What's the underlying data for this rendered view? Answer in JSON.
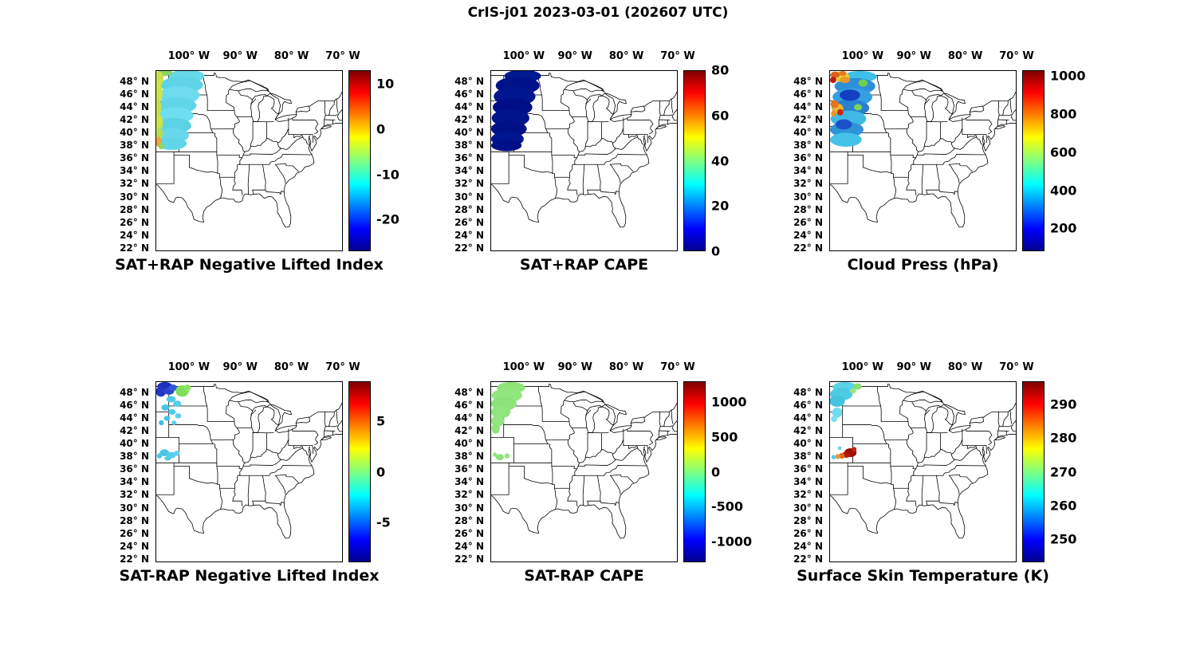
{
  "chart_data": {
    "type": "map",
    "title": "CrIS-j01 2023-03-01 (202607 UTC)",
    "projection": "lon/lat grid over central & eastern United States with state boundaries",
    "lon_range": [
      -106.5,
      -70.0
    ],
    "lat_range": [
      21.5,
      49.7
    ],
    "grid": "off",
    "colormap": "jet",
    "x_ticks": [
      "100° W",
      "90° W",
      "80° W",
      "70° W"
    ],
    "x_tick_lons": [
      -100,
      -90,
      -80,
      -70
    ],
    "y_ticks": [
      "48° N",
      "46° N",
      "44° N",
      "42° N",
      "40° N",
      "38° N",
      "36° N",
      "34° N",
      "32° N",
      "30° N",
      "28° N",
      "26° N",
      "24° N",
      "22° N"
    ],
    "y_tick_lats": [
      48,
      46,
      44,
      42,
      40,
      38,
      36,
      34,
      32,
      30,
      28,
      26,
      24,
      22
    ],
    "panels": [
      {
        "title": "SAT+RAP Negative Lifted Index",
        "colorbar": {
          "min": -27,
          "max": 13,
          "ticks": [
            10,
            0,
            -10,
            -20
          ]
        },
        "description": "CrIS swath over the northern Great Plains; mostly cyan (≈ -8 to -12) with yellow-green values (≈ 0 to 3) along the western edge and one orange patch (≈ 7) near 38.5N.",
        "swath": [
          [
            -100.5,
            48.9,
            3.5,
            1.0,
            "#67d8ea"
          ],
          [
            -101.5,
            47.5,
            4.2,
            1.3,
            "#5fd3e7"
          ],
          [
            -102.0,
            45.9,
            4.0,
            1.4,
            "#6cdbee"
          ],
          [
            -102.4,
            44.3,
            3.8,
            1.3,
            "#62d6e9"
          ],
          [
            -102.8,
            42.7,
            3.6,
            1.3,
            "#6edff0"
          ],
          [
            -103.0,
            41.1,
            3.4,
            1.2,
            "#5cd2e6"
          ],
          [
            -103.3,
            39.6,
            3.2,
            1.2,
            "#66d8ea"
          ],
          [
            -103.5,
            38.3,
            3.0,
            1.0,
            "#60d5e8"
          ],
          [
            -104.9,
            49.4,
            1.6,
            0.5,
            "#8ad465"
          ],
          [
            -106.0,
            48.5,
            0.9,
            1.2,
            "#c9e24c"
          ],
          [
            -106.1,
            46.3,
            0.8,
            1.5,
            "#cfe448"
          ],
          [
            -106.2,
            44.0,
            0.7,
            1.4,
            "#c4e050"
          ],
          [
            -106.0,
            41.6,
            0.8,
            1.3,
            "#cde24a"
          ],
          [
            -105.9,
            39.9,
            0.7,
            0.9,
            "#b8dc55"
          ],
          [
            -106.1,
            38.6,
            0.6,
            0.8,
            "#efa23a"
          ],
          [
            -105.5,
            37.9,
            0.6,
            0.5,
            "#8fd75f"
          ]
        ]
      },
      {
        "title": "SAT+RAP CAPE",
        "colorbar": {
          "min": 0,
          "max": 80,
          "ticks": [
            80,
            60,
            40,
            20,
            0
          ]
        },
        "description": "Same swath, uniformly dark blue (CAPE ≈ 0 J/kg).",
        "swath": [
          [
            -100.3,
            48.9,
            3.6,
            1.0,
            "#001a90"
          ],
          [
            -101.3,
            47.4,
            4.3,
            1.4,
            "#00128a"
          ],
          [
            -101.9,
            45.7,
            4.1,
            1.5,
            "#001690"
          ],
          [
            -102.3,
            44.0,
            3.9,
            1.4,
            "#000f88"
          ],
          [
            -102.7,
            42.3,
            3.7,
            1.4,
            "#00148e"
          ],
          [
            -103.0,
            40.6,
            3.5,
            1.3,
            "#001188"
          ],
          [
            -103.3,
            39.0,
            3.2,
            1.2,
            "#00158f"
          ],
          [
            -103.5,
            38.0,
            3.0,
            0.9,
            "#001089"
          ]
        ]
      },
      {
        "title": "Cloud Press (hPa)",
        "colorbar": {
          "min": 80,
          "max": 1030,
          "ticks": [
            1000,
            800,
            600,
            400,
            200
          ]
        },
        "description": "Swath of cloud-top pressure: mostly blue/cyan (300-500 hPa) with yellow-orange-red patches (800-1000 hPa) near 48-49N and 43-44N.",
        "swath": [
          [
            -100.6,
            48.8,
            3.3,
            0.9,
            "#3fc0e8"
          ],
          [
            -101.6,
            47.3,
            4.0,
            1.3,
            "#2f8fd8"
          ],
          [
            -102.1,
            45.6,
            3.9,
            1.4,
            "#35a0e0"
          ],
          [
            -102.5,
            43.9,
            3.7,
            1.3,
            "#2a7fd0"
          ],
          [
            -102.9,
            42.2,
            3.5,
            1.3,
            "#3fb8e6"
          ],
          [
            -103.2,
            40.5,
            3.3,
            1.2,
            "#2f93d8"
          ],
          [
            -103.4,
            38.9,
            3.1,
            1.1,
            "#45c2e8"
          ],
          [
            -102.6,
            45.9,
            2.0,
            0.9,
            "#1440c0"
          ],
          [
            -103.8,
            41.3,
            1.6,
            0.8,
            "#1a50c8"
          ],
          [
            -104.5,
            48.8,
            1.8,
            0.8,
            "#e8cf38"
          ],
          [
            -105.5,
            49.1,
            0.9,
            0.5,
            "#e06018"
          ],
          [
            -103.6,
            48.3,
            1.0,
            0.5,
            "#e89828"
          ],
          [
            -105.9,
            48.3,
            0.6,
            0.5,
            "#c01810"
          ],
          [
            -104.0,
            49.3,
            0.7,
            0.4,
            "#e87820"
          ],
          [
            -105.0,
            43.8,
            1.1,
            0.8,
            "#e8b630"
          ],
          [
            -105.6,
            44.5,
            0.8,
            0.6,
            "#e87418"
          ],
          [
            -104.5,
            43.2,
            0.6,
            0.5,
            "#cc2410"
          ],
          [
            -105.8,
            43.0,
            0.5,
            0.5,
            "#e89428"
          ],
          [
            -100.0,
            47.8,
            0.9,
            0.6,
            "#6fcf4f"
          ],
          [
            -101.0,
            44.0,
            0.8,
            0.5,
            "#79d457"
          ]
        ]
      },
      {
        "title": "SAT-RAP Negative Lifted Index",
        "colorbar": {
          "min": -9,
          "max": 9,
          "ticks": [
            5,
            0,
            -5
          ]
        },
        "description": "Scattered SAT minus RAP differences: dark blue cluster (≈ -7) near 48-49N, light green patch (≈ +2) to its east, cyan points (≈ -3) scattered south to 38N.",
        "swath": [
          [
            -104.8,
            49.0,
            1.5,
            0.7,
            "#1c2fc0"
          ],
          [
            -105.6,
            48.2,
            1.0,
            0.8,
            "#2338c6"
          ],
          [
            -104.0,
            48.3,
            1.0,
            0.6,
            "#2a46cc"
          ],
          [
            -103.2,
            48.8,
            0.8,
            0.5,
            "#3058d0"
          ],
          [
            -101.4,
            48.3,
            1.3,
            0.9,
            "#7ce05c"
          ],
          [
            -100.4,
            48.8,
            0.7,
            0.5,
            "#8ae468"
          ],
          [
            -103.6,
            47.0,
            0.9,
            0.5,
            "#4ec9e9"
          ],
          [
            -102.4,
            46.3,
            0.8,
            0.5,
            "#57cfeb"
          ],
          [
            -104.7,
            45.7,
            0.8,
            0.5,
            "#49c5e7"
          ],
          [
            -103.4,
            45.0,
            0.7,
            0.45,
            "#52cbe9"
          ],
          [
            -102.2,
            44.4,
            0.6,
            0.4,
            "#5cd2ec"
          ],
          [
            -104.4,
            44.0,
            0.6,
            0.4,
            "#45c2e6"
          ],
          [
            -105.5,
            43.3,
            0.5,
            0.4,
            "#3fbce2"
          ],
          [
            -103.0,
            43.3,
            0.5,
            0.35,
            "#57cfeb"
          ],
          [
            -104.9,
            38.6,
            0.9,
            0.55,
            "#49c4e7"
          ],
          [
            -103.6,
            38.2,
            0.9,
            0.5,
            "#55cdea"
          ],
          [
            -102.5,
            38.5,
            0.6,
            0.4,
            "#60d4ee"
          ],
          [
            -105.9,
            38.1,
            0.5,
            0.4,
            "#4ac5e7"
          ],
          [
            -104.3,
            37.7,
            0.6,
            0.35,
            "#52cbe9"
          ]
        ]
      },
      {
        "title": "SAT-RAP CAPE",
        "colorbar": {
          "min": -1300,
          "max": 1300,
          "ticks": [
            1000,
            500,
            0,
            -500,
            -1000
          ]
        },
        "description": "Light-green swath (difference ≈ +100 J/kg) over Montana/Dakotas/Wyoming with a few green points near 38N.",
        "swath": [
          [
            -102.6,
            48.8,
            2.8,
            0.9,
            "#8fe47b"
          ],
          [
            -103.4,
            47.6,
            3.0,
            1.1,
            "#92e67e"
          ],
          [
            -104.0,
            46.3,
            2.5,
            1.1,
            "#8ce379"
          ],
          [
            -104.6,
            45.0,
            1.9,
            1.0,
            "#90e57c"
          ],
          [
            -105.2,
            43.6,
            1.3,
            0.9,
            "#94e680"
          ],
          [
            -105.6,
            42.4,
            0.8,
            0.8,
            "#8ee37a"
          ],
          [
            -104.8,
            37.9,
            0.8,
            0.5,
            "#8ce379"
          ],
          [
            -103.4,
            38.1,
            0.5,
            0.4,
            "#92e67e"
          ],
          [
            -105.8,
            38.3,
            0.4,
            0.35,
            "#90e57c"
          ]
        ]
      },
      {
        "title": "Surface Skin Temperature (K)",
        "colorbar": {
          "min": 243,
          "max": 297,
          "ticks": [
            290,
            280,
            270,
            260,
            250
          ]
        },
        "description": "Cyan patch (≈ 262-266 K) over Montana/North Dakota, green points (≈ 272 K) at its east edge, and a dark-red cluster (≈ 292-295 K) with orange points near 38-39N in Colorado/Kansas.",
        "swath": [
          [
            -103.6,
            48.9,
            2.4,
            0.8,
            "#5ad2e8"
          ],
          [
            -104.3,
            47.8,
            2.2,
            1.0,
            "#4ecbe4"
          ],
          [
            -105.1,
            46.7,
            1.5,
            0.9,
            "#44c4e0"
          ],
          [
            -101.1,
            49.0,
            0.8,
            0.5,
            "#8ade6c"
          ],
          [
            -102.0,
            48.3,
            0.6,
            0.4,
            "#9ae47a"
          ],
          [
            -105.1,
            44.9,
            1.0,
            0.8,
            "#70dcef"
          ],
          [
            -105.7,
            43.9,
            0.6,
            0.5,
            "#7ce2f2"
          ],
          [
            -102.5,
            38.6,
            1.2,
            0.7,
            "#9c0f06"
          ],
          [
            -103.3,
            38.3,
            0.8,
            0.5,
            "#b81408"
          ],
          [
            -104.2,
            38.1,
            0.6,
            0.45,
            "#e06a1a"
          ],
          [
            -105.0,
            38.0,
            0.5,
            0.4,
            "#e89a3a"
          ],
          [
            -101.8,
            39.1,
            0.5,
            0.4,
            "#c22410"
          ],
          [
            -105.8,
            37.9,
            0.4,
            0.35,
            "#55cdea"
          ],
          [
            -104.6,
            39.3,
            0.35,
            0.3,
            "#62d6ee"
          ]
        ]
      }
    ]
  }
}
